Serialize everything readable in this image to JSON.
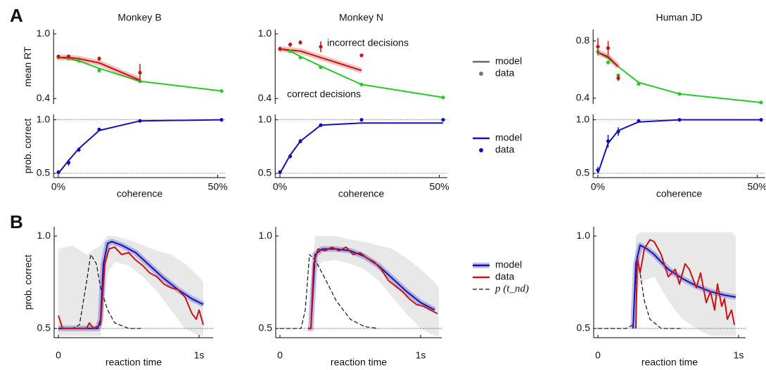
{
  "panel_labels": [
    "A",
    "B"
  ],
  "chart_data": [
    {
      "type": "line",
      "title": "Monkey B",
      "ylabel": "mean RT",
      "x": [
        0,
        3.2,
        6.4,
        12.8,
        25.6,
        51.2
      ],
      "xlim": [
        -1.5,
        52.5
      ],
      "ylim": [
        0.35,
        1.04
      ],
      "yticks": [
        {
          "value": 1,
          "label": "1.0"
        },
        0.4
      ],
      "series": [
        {
          "style": "line",
          "color": "#22cc22",
          "values": [
            0.78,
            0.77,
            0.75,
            0.68,
            0.56,
            0.47
          ]
        },
        {
          "style": "band-line",
          "color": "#cc1111",
          "x": [
            0,
            3.2,
            6.4,
            12.8,
            25.6
          ],
          "values": [
            0.78,
            0.78,
            0.77,
            0.73,
            0.57
          ]
        },
        {
          "style": "points",
          "color": "#22cc22",
          "values": [
            0.78,
            0.77,
            0.75,
            0.66,
            0.56,
            0.47
          ]
        },
        {
          "style": "points",
          "color": "#cc1111",
          "x": [
            0,
            3.2,
            12.8,
            25.6
          ],
          "values": [
            0.79,
            0.79,
            0.77,
            0.64
          ],
          "errors": [
            0.01,
            0.01,
            0.02,
            0.08
          ]
        }
      ]
    },
    {
      "type": "line",
      "title": "Monkey N",
      "x": [
        0,
        3.2,
        6.4,
        12.8,
        25.6,
        51.2
      ],
      "xlim": [
        -1.5,
        52.5
      ],
      "ylim": [
        0.35,
        1.04
      ],
      "yticks": [
        {
          "value": 1,
          "label": "1.0"
        },
        0.4
      ],
      "annotations": [
        "incorrect decisions",
        "correct decisions"
      ],
      "legend": [
        {
          "name": "model",
          "color": "#666666",
          "style": "line"
        },
        {
          "name": "data",
          "color": "#777777",
          "style": "dot"
        }
      ],
      "series": [
        {
          "style": "line",
          "color": "#22cc22",
          "values": [
            0.86,
            0.84,
            0.79,
            0.7,
            0.53,
            0.41
          ]
        },
        {
          "style": "band-line",
          "color": "#cc1111",
          "x": [
            0,
            3.2,
            6.4,
            12.8,
            25.6
          ],
          "values": [
            0.86,
            0.85,
            0.84,
            0.78,
            0.66
          ]
        },
        {
          "style": "points",
          "color": "#22cc22",
          "values": [
            0.86,
            0.84,
            0.78,
            0.69,
            0.53,
            0.41
          ]
        },
        {
          "style": "points",
          "color": "#cc1111",
          "x": [
            0,
            3.2,
            6.4,
            12.8,
            25.6
          ],
          "values": [
            0.86,
            0.9,
            0.92,
            0.88,
            0.8
          ],
          "errors": [
            0.02,
            0.02,
            0.02,
            0.05,
            0.01
          ]
        }
      ]
    },
    {
      "type": "line",
      "title": "Human JD",
      "x": [
        0,
        3.2,
        6.4,
        12.8,
        25.6,
        51.2
      ],
      "xlim": [
        -1.5,
        52.5
      ],
      "ylim": [
        0.36,
        0.88
      ],
      "yticks": [
        0.8,
        0.4
      ],
      "series": [
        {
          "style": "line",
          "color": "#22cc22",
          "values": [
            0.72,
            0.68,
            0.62,
            0.51,
            0.43,
            0.37
          ]
        },
        {
          "style": "band-line",
          "color": "#cc1111",
          "x": [
            0,
            3.2,
            6.4
          ],
          "values": [
            0.72,
            0.69,
            0.62
          ]
        },
        {
          "style": "points",
          "color": "#22cc22",
          "values": [
            0.725,
            0.65,
            0.56,
            0.5,
            0.43,
            0.37
          ]
        },
        {
          "style": "points",
          "color": "#cc1111",
          "x": [
            0,
            3.2,
            6.4
          ],
          "values": [
            0.76,
            0.75,
            0.54
          ],
          "errors": [
            0.06,
            0.05,
            0.02
          ]
        }
      ]
    },
    {
      "type": "line",
      "ylabel": "prob. correct",
      "xlabel": "coherence",
      "x": [
        0,
        3.2,
        6.4,
        12.8,
        25.6,
        51.2
      ],
      "xlim": [
        -1.5,
        52.5
      ],
      "ylim": [
        0.46,
        1.05
      ],
      "xticks": [
        {
          "value": 0,
          "label": "0%"
        },
        {
          "value": 50,
          "label": "50%"
        }
      ],
      "yticks": [
        {
          "value": 1,
          "label": "1.0"
        },
        0.5
      ],
      "ref_lines": [
        1,
        0.5
      ],
      "series": [
        {
          "style": "line",
          "color": "#1111bb",
          "values": [
            0.5,
            0.62,
            0.73,
            0.9,
            0.99,
            1.0
          ]
        },
        {
          "style": "points",
          "color": "#1111bb",
          "values": [
            0.51,
            0.6,
            0.72,
            0.91,
            0.99,
            1.0
          ],
          "errors": [
            0.02,
            0.03,
            0.02,
            0.01,
            0.005,
            0.003
          ]
        }
      ]
    },
    {
      "type": "line",
      "xlabel": "coherence",
      "x": [
        0,
        3.2,
        6.4,
        12.8,
        25.6,
        51.2
      ],
      "xlim": [
        -1.5,
        52.5
      ],
      "ylim": [
        0.46,
        1.05
      ],
      "xticks": [
        {
          "value": 0,
          "label": "0%"
        },
        {
          "value": 50,
          "label": "50%"
        }
      ],
      "yticks": [
        {
          "value": 1,
          "label": "1.0"
        },
        0.5
      ],
      "ref_lines": [
        1,
        0.5
      ],
      "legend": [
        {
          "name": "model",
          "color": "#1111bb",
          "style": "line"
        },
        {
          "name": "data",
          "color": "#1111bb",
          "style": "dot"
        }
      ],
      "series": [
        {
          "style": "line",
          "color": "#1111bb",
          "values": [
            0.5,
            0.67,
            0.8,
            0.95,
            0.97,
            0.97
          ]
        },
        {
          "style": "points",
          "color": "#1111bb",
          "values": [
            0.51,
            0.66,
            0.8,
            0.95,
            1.0,
            1.0
          ],
          "errors": [
            0.02,
            0.02,
            0.02,
            0.01,
            0.003,
            0.002
          ]
        }
      ]
    },
    {
      "type": "line",
      "xlabel": "coherence",
      "x": [
        0,
        3.2,
        6.4,
        12.8,
        25.6,
        51.2
      ],
      "xlim": [
        -1.5,
        52.5
      ],
      "ylim": [
        0.46,
        1.05
      ],
      "xticks": [
        {
          "value": 0,
          "label": "0%"
        },
        {
          "value": 50,
          "label": "50%"
        }
      ],
      "yticks": [
        {
          "value": 1,
          "label": "1.0"
        },
        0.5
      ],
      "ref_lines": [
        1,
        0.5
      ],
      "series": [
        {
          "style": "line",
          "color": "#1111bb",
          "values": [
            0.5,
            0.78,
            0.9,
            0.98,
            1.0,
            1.0
          ]
        },
        {
          "style": "points",
          "color": "#1111bb",
          "values": [
            0.53,
            0.8,
            0.89,
            0.99,
            1.0,
            1.0
          ],
          "errors": [
            0.03,
            0.06,
            0.04,
            0.01,
            0.003,
            0.002
          ]
        }
      ]
    },
    {
      "type": "line",
      "ylabel": "prob. correct",
      "xlabel": "reaction time",
      "xlim": [
        -0.03,
        1.1
      ],
      "ylim": [
        0.45,
        1.05
      ],
      "xticks": [
        0,
        {
          "value": 1,
          "label": "1s"
        }
      ],
      "yticks": [
        {
          "value": 1,
          "label": "1.0"
        },
        0.5
      ],
      "ref_lines": [
        0.5
      ],
      "ci": {
        "color": "#e8e8e8",
        "x": [
          0,
          0.1,
          0.2,
          0.3,
          0.35,
          0.4,
          0.5,
          0.6,
          0.7,
          0.8,
          0.9,
          1.0,
          1.03
        ],
        "upper": [
          0.93,
          0.95,
          0.9,
          0.95,
          1.0,
          1.0,
          0.98,
          0.95,
          0.92,
          0.9,
          0.85,
          0.78,
          0.75
        ],
        "lower": [
          0.46,
          0.46,
          0.46,
          0.46,
          0.8,
          0.86,
          0.84,
          0.78,
          0.7,
          0.6,
          0.5,
          0.46,
          0.46
        ]
      },
      "series": [
        {
          "style": "dashed",
          "color": "#111111",
          "x": [
            0,
            0.1,
            0.15,
            0.2,
            0.23,
            0.27,
            0.3,
            0.35,
            0.4,
            0.5,
            0.6
          ],
          "values": [
            0.5,
            0.5,
            0.52,
            0.75,
            0.9,
            0.85,
            0.72,
            0.6,
            0.53,
            0.5,
            0.5
          ]
        },
        {
          "style": "band-line",
          "color": "#1111bb",
          "x": [
            0,
            0.1,
            0.2,
            0.28,
            0.3,
            0.32,
            0.35,
            0.38,
            0.45,
            0.55,
            0.65,
            0.75,
            0.85,
            0.95,
            1.03
          ],
          "values": [
            0.5,
            0.5,
            0.5,
            0.5,
            0.55,
            0.85,
            0.96,
            0.97,
            0.95,
            0.91,
            0.84,
            0.77,
            0.71,
            0.66,
            0.63
          ]
        },
        {
          "style": "line",
          "color": "#cc1111",
          "x": [
            0,
            0.03,
            0.2,
            0.22,
            0.25,
            0.3,
            0.33,
            0.36,
            0.4,
            0.45,
            0.5,
            0.55,
            0.6,
            0.65,
            0.7,
            0.75,
            0.8,
            0.85,
            0.9,
            0.95,
            0.98,
            1.0,
            1.03
          ],
          "values": [
            0.57,
            0.5,
            0.5,
            0.53,
            0.5,
            0.52,
            0.85,
            0.93,
            0.94,
            0.9,
            0.91,
            0.87,
            0.84,
            0.8,
            0.78,
            0.74,
            0.72,
            0.71,
            0.67,
            0.58,
            0.55,
            0.6,
            0.52
          ]
        }
      ]
    },
    {
      "type": "line",
      "xlabel": "reaction time",
      "xlim": [
        -0.03,
        1.15
      ],
      "ylim": [
        0.45,
        1.05
      ],
      "xticks": [
        0,
        {
          "value": 1,
          "label": "1s"
        }
      ],
      "yticks": [
        {
          "value": 1,
          "label": "1.0"
        },
        0.5
      ],
      "ref_lines": [
        0.5
      ],
      "legend": [
        {
          "name": "model",
          "color": "#1111bb",
          "style": "band-line"
        },
        {
          "name": "data",
          "color": "#cc1111",
          "style": "line"
        },
        {
          "name": "p (t_nd)",
          "color": "#111111",
          "style": "dashed"
        }
      ],
      "ci": {
        "color": "#e8e8e8",
        "x": [
          0.2,
          0.25,
          0.3,
          0.4,
          0.5,
          0.6,
          0.7,
          0.8,
          0.9,
          1.0,
          1.1,
          1.13
        ],
        "upper": [
          0.5,
          1.0,
          1.0,
          1.0,
          0.98,
          0.97,
          0.95,
          0.93,
          0.88,
          0.82,
          0.75,
          0.72
        ],
        "lower": [
          0.46,
          0.82,
          0.86,
          0.87,
          0.85,
          0.82,
          0.76,
          0.67,
          0.58,
          0.5,
          0.46,
          0.46
        ]
      },
      "series": [
        {
          "style": "dashed",
          "color": "#111111",
          "x": [
            0,
            0.15,
            0.18,
            0.21,
            0.25,
            0.3,
            0.4,
            0.5,
            0.6,
            0.7
          ],
          "values": [
            0.5,
            0.5,
            0.6,
            0.9,
            0.87,
            0.8,
            0.65,
            0.55,
            0.51,
            0.5
          ]
        },
        {
          "style": "band-line",
          "color": "#1111bb",
          "x": [
            0.2,
            0.22,
            0.25,
            0.3,
            0.4,
            0.5,
            0.6,
            0.7,
            0.8,
            0.9,
            1.0,
            1.1
          ],
          "values": [
            0.5,
            0.5,
            0.9,
            0.93,
            0.93,
            0.92,
            0.89,
            0.84,
            0.77,
            0.7,
            0.64,
            0.6
          ]
        },
        {
          "style": "line",
          "color": "#cc1111",
          "x": [
            0.2,
            0.22,
            0.24,
            0.27,
            0.32,
            0.37,
            0.42,
            0.47,
            0.52,
            0.57,
            0.62,
            0.67,
            0.72,
            0.77,
            0.82,
            0.87,
            0.92,
            0.97,
            1.02,
            1.07,
            1.12
          ],
          "values": [
            0.5,
            0.5,
            0.85,
            0.93,
            0.92,
            0.94,
            0.92,
            0.94,
            0.9,
            0.91,
            0.88,
            0.86,
            0.82,
            0.76,
            0.73,
            0.7,
            0.66,
            0.63,
            0.62,
            0.6,
            0.58
          ]
        }
      ]
    },
    {
      "type": "line",
      "xlabel": "reaction time",
      "xlim": [
        -0.03,
        1.05
      ],
      "ylim": [
        0.45,
        1.05
      ],
      "xticks": [
        0,
        {
          "value": 1,
          "label": "1s"
        }
      ],
      "yticks": [
        {
          "value": 1,
          "label": "1.0"
        },
        0.5
      ],
      "ref_lines": [
        0.5
      ],
      "ci": {
        "color": "#e8e8e8",
        "x": [
          0.25,
          0.27,
          0.3,
          0.4,
          0.5,
          0.6,
          0.7,
          0.8,
          0.9,
          0.95,
          0.98
        ],
        "upper": [
          0.5,
          1.0,
          1.02,
          1.02,
          1.02,
          1.02,
          1.02,
          1.02,
          1.02,
          1.02,
          1.0
        ],
        "lower": [
          0.46,
          0.6,
          0.75,
          0.78,
          0.65,
          0.55,
          0.5,
          0.46,
          0.46,
          0.46,
          0.46
        ]
      },
      "series": [
        {
          "style": "dashed",
          "color": "#111111",
          "x": [
            0,
            0.2,
            0.25,
            0.28,
            0.3,
            0.33,
            0.37,
            0.45,
            0.6
          ],
          "values": [
            0.5,
            0.5,
            0.52,
            0.9,
            0.8,
            0.65,
            0.55,
            0.5,
            0.5
          ]
        },
        {
          "style": "band-line",
          "color": "#1111bb",
          "x": [
            0.25,
            0.27,
            0.3,
            0.35,
            0.4,
            0.5,
            0.6,
            0.7,
            0.8,
            0.9,
            0.98
          ],
          "values": [
            0.5,
            0.85,
            0.95,
            0.93,
            0.9,
            0.82,
            0.77,
            0.73,
            0.7,
            0.68,
            0.67
          ]
        },
        {
          "style": "line",
          "color": "#cc1111",
          "x": [
            0.27,
            0.28,
            0.3,
            0.33,
            0.37,
            0.4,
            0.45,
            0.5,
            0.55,
            0.58,
            0.62,
            0.65,
            0.7,
            0.73,
            0.77,
            0.8,
            0.83,
            0.85,
            0.88,
            0.9,
            0.92,
            0.95,
            0.97
          ],
          "values": [
            0.5,
            0.88,
            0.8,
            0.93,
            0.98,
            0.97,
            0.9,
            0.78,
            0.82,
            0.74,
            0.85,
            0.82,
            0.72,
            0.8,
            0.64,
            0.7,
            0.6,
            0.74,
            0.62,
            0.66,
            0.55,
            0.6,
            0.52
          ]
        }
      ]
    }
  ]
}
